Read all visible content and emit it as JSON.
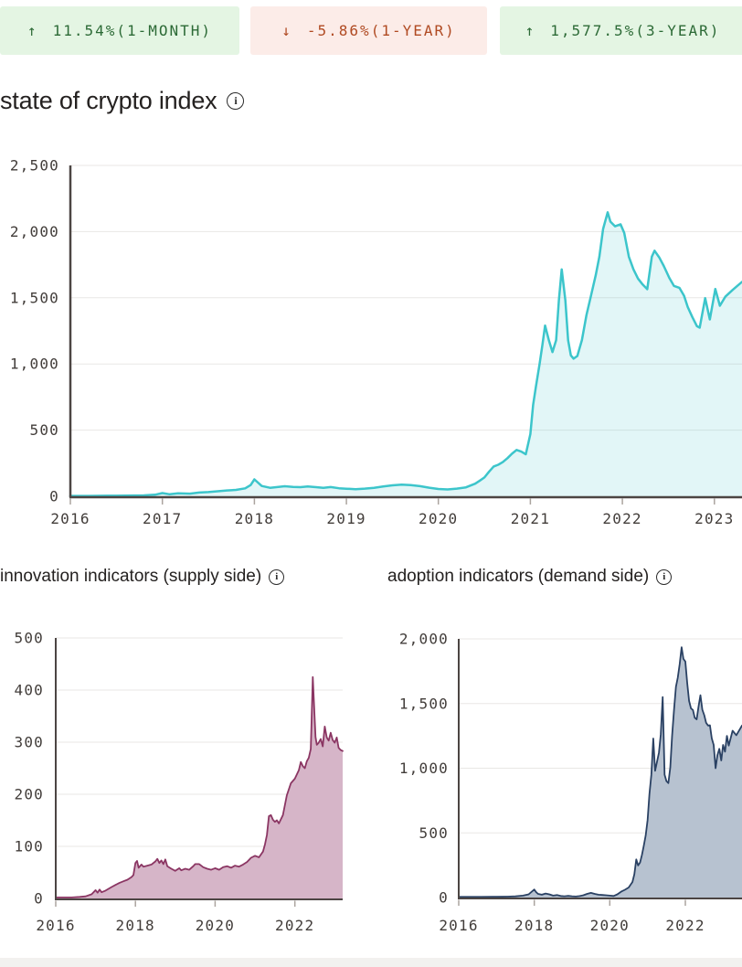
{
  "badges": [
    {
      "arrow": "↑",
      "label": "11.54%(1-MONTH)",
      "tone": "positive"
    },
    {
      "arrow": "↓",
      "label": "-5.86%(1-YEAR)",
      "tone": "negative"
    },
    {
      "arrow": "↑",
      "label": "1,577.5%(3-YEAR)",
      "tone": "positive"
    }
  ],
  "sections": {
    "index_title": "state of crypto index",
    "supply_title": "innovation indicators (supply side)",
    "demand_title": "adoption indicators (demand side)"
  },
  "icons": {
    "info_glyph": "i"
  },
  "colors": {
    "background": "#ffffff",
    "badge_positive_bg": "#e4f5e3",
    "badge_positive_text": "#2c6a36",
    "badge_negative_bg": "#fcece8",
    "badge_negative_text": "#b04a22",
    "title_text": "#242120",
    "axis": "#4c4543",
    "grid": "#e9e7e5",
    "tick": "#aba49f",
    "axis_label": "#423d3a",
    "index_line": "#3cc5cb",
    "index_fill": "rgba(61,197,203,0.15)",
    "supply_line": "#8b3663",
    "supply_fill": "#d6b5c8",
    "demand_line": "#2a4163",
    "demand_fill": "#b7c2d0",
    "footer_strip": "#f2f1ef"
  },
  "chart_data": [
    {
      "type": "area",
      "title": "state of crypto index",
      "xlabel": "",
      "ylabel": "",
      "grid": true,
      "legend": "none",
      "x_range": [
        2016,
        2023.3
      ],
      "y_range": [
        0,
        2500
      ],
      "y_ticks": [
        {
          "v": 0,
          "label": "0"
        },
        {
          "v": 500,
          "label": "500"
        },
        {
          "v": 1000,
          "label": "1,000"
        },
        {
          "v": 1500,
          "label": "1,500"
        },
        {
          "v": 2000,
          "label": "2,000"
        },
        {
          "v": 2500,
          "label": "2,500"
        }
      ],
      "x_ticks": [
        {
          "v": 2016,
          "label": "2016"
        },
        {
          "v": 2017,
          "label": "2017"
        },
        {
          "v": 2018,
          "label": "2018"
        },
        {
          "v": 2019,
          "label": "2019"
        },
        {
          "v": 2020,
          "label": "2020"
        },
        {
          "v": 2021,
          "label": "2021"
        },
        {
          "v": 2022,
          "label": "2022"
        },
        {
          "v": 2023,
          "label": "2023"
        }
      ],
      "line_color": "#3cc5cb",
      "fill_color": "rgba(61,197,203,0.15)",
      "points": [
        [
          2016.0,
          3
        ],
        [
          2016.2,
          3
        ],
        [
          2016.4,
          4
        ],
        [
          2016.6,
          5
        ],
        [
          2016.8,
          7
        ],
        [
          2016.92,
          12
        ],
        [
          2017.0,
          24
        ],
        [
          2017.08,
          15
        ],
        [
          2017.17,
          22
        ],
        [
          2017.3,
          20
        ],
        [
          2017.4,
          28
        ],
        [
          2017.5,
          32
        ],
        [
          2017.6,
          38
        ],
        [
          2017.7,
          44
        ],
        [
          2017.8,
          48
        ],
        [
          2017.9,
          60
        ],
        [
          2017.96,
          85
        ],
        [
          2018.0,
          128
        ],
        [
          2018.08,
          78
        ],
        [
          2018.17,
          64
        ],
        [
          2018.25,
          70
        ],
        [
          2018.33,
          76
        ],
        [
          2018.42,
          71
        ],
        [
          2018.5,
          69
        ],
        [
          2018.58,
          74
        ],
        [
          2018.67,
          69
        ],
        [
          2018.75,
          64
        ],
        [
          2018.83,
          70
        ],
        [
          2018.92,
          61
        ],
        [
          2019.0,
          57
        ],
        [
          2019.1,
          54
        ],
        [
          2019.2,
          58
        ],
        [
          2019.3,
          64
        ],
        [
          2019.4,
          74
        ],
        [
          2019.5,
          83
        ],
        [
          2019.6,
          88
        ],
        [
          2019.7,
          84
        ],
        [
          2019.8,
          77
        ],
        [
          2019.9,
          65
        ],
        [
          2020.0,
          55
        ],
        [
          2020.1,
          52
        ],
        [
          2020.2,
          58
        ],
        [
          2020.3,
          68
        ],
        [
          2020.4,
          95
        ],
        [
          2020.45,
          118
        ],
        [
          2020.5,
          142
        ],
        [
          2020.55,
          185
        ],
        [
          2020.6,
          225
        ],
        [
          2020.65,
          238
        ],
        [
          2020.7,
          258
        ],
        [
          2020.75,
          288
        ],
        [
          2020.8,
          322
        ],
        [
          2020.85,
          350
        ],
        [
          2020.9,
          338
        ],
        [
          2020.95,
          318
        ],
        [
          2021.0,
          470
        ],
        [
          2021.03,
          690
        ],
        [
          2021.06,
          830
        ],
        [
          2021.1,
          1000
        ],
        [
          2021.13,
          1140
        ],
        [
          2021.16,
          1290
        ],
        [
          2021.2,
          1180
        ],
        [
          2021.24,
          1090
        ],
        [
          2021.28,
          1180
        ],
        [
          2021.31,
          1480
        ],
        [
          2021.34,
          1715
        ],
        [
          2021.38,
          1480
        ],
        [
          2021.41,
          1180
        ],
        [
          2021.44,
          1065
        ],
        [
          2021.47,
          1040
        ],
        [
          2021.51,
          1060
        ],
        [
          2021.56,
          1180
        ],
        [
          2021.61,
          1370
        ],
        [
          2021.66,
          1520
        ],
        [
          2021.71,
          1670
        ],
        [
          2021.75,
          1810
        ],
        [
          2021.79,
          2020
        ],
        [
          2021.84,
          2146
        ],
        [
          2021.87,
          2075
        ],
        [
          2021.92,
          2040
        ],
        [
          2021.98,
          2055
        ],
        [
          2022.02,
          1990
        ],
        [
          2022.07,
          1810
        ],
        [
          2022.12,
          1715
        ],
        [
          2022.17,
          1645
        ],
        [
          2022.22,
          1600
        ],
        [
          2022.27,
          1565
        ],
        [
          2022.32,
          1810
        ],
        [
          2022.35,
          1856
        ],
        [
          2022.4,
          1805
        ],
        [
          2022.45,
          1740
        ],
        [
          2022.51,
          1650
        ],
        [
          2022.56,
          1590
        ],
        [
          2022.62,
          1575
        ],
        [
          2022.67,
          1515
        ],
        [
          2022.71,
          1430
        ],
        [
          2022.76,
          1355
        ],
        [
          2022.81,
          1285
        ],
        [
          2022.84,
          1274
        ],
        [
          2022.9,
          1497
        ],
        [
          2022.95,
          1336
        ],
        [
          2023.01,
          1566
        ],
        [
          2023.06,
          1440
        ],
        [
          2023.12,
          1510
        ],
        [
          2023.2,
          1560
        ],
        [
          2023.3,
          1620
        ]
      ]
    },
    {
      "type": "area",
      "title": "innovation indicators (supply side)",
      "xlabel": "",
      "ylabel": "",
      "grid": true,
      "legend": "none",
      "x_range": [
        2016,
        2023.2
      ],
      "y_range": [
        0,
        500
      ],
      "y_ticks": [
        {
          "v": 0,
          "label": "0"
        },
        {
          "v": 100,
          "label": "100"
        },
        {
          "v": 200,
          "label": "200"
        },
        {
          "v": 300,
          "label": "300"
        },
        {
          "v": 400,
          "label": "400"
        },
        {
          "v": 500,
          "label": "500"
        }
      ],
      "x_ticks": [
        {
          "v": 2016,
          "label": "2016"
        },
        {
          "v": 2018,
          "label": "2018"
        },
        {
          "v": 2020,
          "label": "2020"
        },
        {
          "v": 2022,
          "label": "2022"
        }
      ],
      "line_color": "#8b3663",
      "fill_color": "#d6b5c8",
      "points": [
        [
          2016.0,
          2
        ],
        [
          2016.2,
          2
        ],
        [
          2016.4,
          2
        ],
        [
          2016.6,
          3
        ],
        [
          2016.75,
          4
        ],
        [
          2016.9,
          8
        ],
        [
          2017.0,
          16
        ],
        [
          2017.05,
          11
        ],
        [
          2017.1,
          17
        ],
        [
          2017.15,
          12
        ],
        [
          2017.25,
          15
        ],
        [
          2017.4,
          22
        ],
        [
          2017.5,
          26
        ],
        [
          2017.6,
          30
        ],
        [
          2017.7,
          33
        ],
        [
          2017.8,
          36
        ],
        [
          2017.9,
          41
        ],
        [
          2017.95,
          45
        ],
        [
          2018.0,
          68
        ],
        [
          2018.04,
          72
        ],
        [
          2018.08,
          59
        ],
        [
          2018.15,
          65
        ],
        [
          2018.2,
          61
        ],
        [
          2018.3,
          63
        ],
        [
          2018.4,
          65
        ],
        [
          2018.5,
          71
        ],
        [
          2018.55,
          76
        ],
        [
          2018.6,
          68
        ],
        [
          2018.65,
          73
        ],
        [
          2018.7,
          66
        ],
        [
          2018.75,
          75
        ],
        [
          2018.8,
          62
        ],
        [
          2018.9,
          57
        ],
        [
          2019.0,
          53
        ],
        [
          2019.1,
          58
        ],
        [
          2019.15,
          54
        ],
        [
          2019.25,
          57
        ],
        [
          2019.35,
          55
        ],
        [
          2019.45,
          62
        ],
        [
          2019.5,
          66
        ],
        [
          2019.6,
          66
        ],
        [
          2019.7,
          60
        ],
        [
          2019.8,
          57
        ],
        [
          2019.9,
          55
        ],
        [
          2020.0,
          58
        ],
        [
          2020.1,
          55
        ],
        [
          2020.2,
          60
        ],
        [
          2020.3,
          62
        ],
        [
          2020.4,
          59
        ],
        [
          2020.5,
          63
        ],
        [
          2020.6,
          61
        ],
        [
          2020.7,
          65
        ],
        [
          2020.8,
          70
        ],
        [
          2020.9,
          78
        ],
        [
          2021.0,
          82
        ],
        [
          2021.1,
          79
        ],
        [
          2021.2,
          90
        ],
        [
          2021.25,
          104
        ],
        [
          2021.3,
          122
        ],
        [
          2021.35,
          158
        ],
        [
          2021.4,
          160
        ],
        [
          2021.45,
          151
        ],
        [
          2021.5,
          147
        ],
        [
          2021.55,
          150
        ],
        [
          2021.6,
          144
        ],
        [
          2021.7,
          160
        ],
        [
          2021.8,
          198
        ],
        [
          2021.9,
          221
        ],
        [
          2022.0,
          230
        ],
        [
          2022.1,
          246
        ],
        [
          2022.15,
          262
        ],
        [
          2022.2,
          254
        ],
        [
          2022.25,
          250
        ],
        [
          2022.3,
          263
        ],
        [
          2022.35,
          270
        ],
        [
          2022.4,
          287
        ],
        [
          2022.45,
          425
        ],
        [
          2022.5,
          340
        ],
        [
          2022.52,
          310
        ],
        [
          2022.55,
          295
        ],
        [
          2022.6,
          299
        ],
        [
          2022.65,
          306
        ],
        [
          2022.7,
          292
        ],
        [
          2022.75,
          330
        ],
        [
          2022.8,
          309
        ],
        [
          2022.85,
          303
        ],
        [
          2022.9,
          318
        ],
        [
          2022.95,
          304
        ],
        [
          2023.0,
          299
        ],
        [
          2023.05,
          309
        ],
        [
          2023.1,
          289
        ],
        [
          2023.15,
          285
        ],
        [
          2023.2,
          283
        ]
      ]
    },
    {
      "type": "area",
      "title": "adoption indicators (demand side)",
      "xlabel": "",
      "ylabel": "",
      "grid": true,
      "legend": "none",
      "x_range": [
        2016,
        2023.5
      ],
      "y_range": [
        0,
        2000
      ],
      "y_ticks": [
        {
          "v": 0,
          "label": "0"
        },
        {
          "v": 500,
          "label": "500"
        },
        {
          "v": 1000,
          "label": "1,000"
        },
        {
          "v": 1500,
          "label": "1,500"
        },
        {
          "v": 2000,
          "label": "2,000"
        }
      ],
      "x_ticks": [
        {
          "v": 2016,
          "label": "2016"
        },
        {
          "v": 2018,
          "label": "2018"
        },
        {
          "v": 2020,
          "label": "2020"
        },
        {
          "v": 2022,
          "label": "2022"
        }
      ],
      "line_color": "#2a4163",
      "fill_color": "#b7c2d0",
      "points": [
        [
          2016.0,
          5
        ],
        [
          2016.3,
          5
        ],
        [
          2016.6,
          5
        ],
        [
          2016.9,
          6
        ],
        [
          2017.0,
          6
        ],
        [
          2017.3,
          7
        ],
        [
          2017.5,
          9
        ],
        [
          2017.7,
          15
        ],
        [
          2017.85,
          25
        ],
        [
          2018.0,
          62
        ],
        [
          2018.05,
          42
        ],
        [
          2018.1,
          28
        ],
        [
          2018.2,
          22
        ],
        [
          2018.3,
          31
        ],
        [
          2018.4,
          25
        ],
        [
          2018.5,
          15
        ],
        [
          2018.6,
          19
        ],
        [
          2018.7,
          12
        ],
        [
          2018.8,
          10
        ],
        [
          2018.9,
          13
        ],
        [
          2019.0,
          10
        ],
        [
          2019.1,
          8
        ],
        [
          2019.2,
          11
        ],
        [
          2019.3,
          18
        ],
        [
          2019.4,
          28
        ],
        [
          2019.5,
          36
        ],
        [
          2019.6,
          28
        ],
        [
          2019.7,
          22
        ],
        [
          2019.8,
          20
        ],
        [
          2019.9,
          18
        ],
        [
          2020.0,
          15
        ],
        [
          2020.1,
          12
        ],
        [
          2020.2,
          25
        ],
        [
          2020.3,
          45
        ],
        [
          2020.4,
          60
        ],
        [
          2020.5,
          78
        ],
        [
          2020.6,
          120
        ],
        [
          2020.65,
          180
        ],
        [
          2020.7,
          295
        ],
        [
          2020.75,
          248
        ],
        [
          2020.8,
          270
        ],
        [
          2020.85,
          330
        ],
        [
          2020.9,
          400
        ],
        [
          2020.95,
          480
        ],
        [
          2021.0,
          600
        ],
        [
          2021.05,
          800
        ],
        [
          2021.1,
          950
        ],
        [
          2021.15,
          1230
        ],
        [
          2021.2,
          980
        ],
        [
          2021.25,
          1050
        ],
        [
          2021.3,
          1120
        ],
        [
          2021.35,
          1260
        ],
        [
          2021.4,
          1550
        ],
        [
          2021.45,
          950
        ],
        [
          2021.5,
          900
        ],
        [
          2021.55,
          885
        ],
        [
          2021.6,
          1005
        ],
        [
          2021.65,
          1250
        ],
        [
          2021.7,
          1450
        ],
        [
          2021.75,
          1630
        ],
        [
          2021.8,
          1700
        ],
        [
          2021.85,
          1805
        ],
        [
          2021.9,
          1935
        ],
        [
          2021.95,
          1845
        ],
        [
          2022.0,
          1825
        ],
        [
          2022.05,
          1655
        ],
        [
          2022.1,
          1520
        ],
        [
          2022.15,
          1462
        ],
        [
          2022.2,
          1450
        ],
        [
          2022.25,
          1390
        ],
        [
          2022.3,
          1378
        ],
        [
          2022.35,
          1480
        ],
        [
          2022.4,
          1565
        ],
        [
          2022.45,
          1452
        ],
        [
          2022.5,
          1410
        ],
        [
          2022.55,
          1352
        ],
        [
          2022.6,
          1330
        ],
        [
          2022.65,
          1332
        ],
        [
          2022.7,
          1232
        ],
        [
          2022.75,
          1180
        ],
        [
          2022.8,
          1000
        ],
        [
          2022.85,
          1100
        ],
        [
          2022.9,
          1150
        ],
        [
          2022.95,
          1060
        ],
        [
          2023.0,
          1180
        ],
        [
          2023.05,
          1128
        ],
        [
          2023.1,
          1250
        ],
        [
          2023.15,
          1175
        ],
        [
          2023.25,
          1290
        ],
        [
          2023.35,
          1255
        ],
        [
          2023.5,
          1330
        ]
      ]
    }
  ]
}
